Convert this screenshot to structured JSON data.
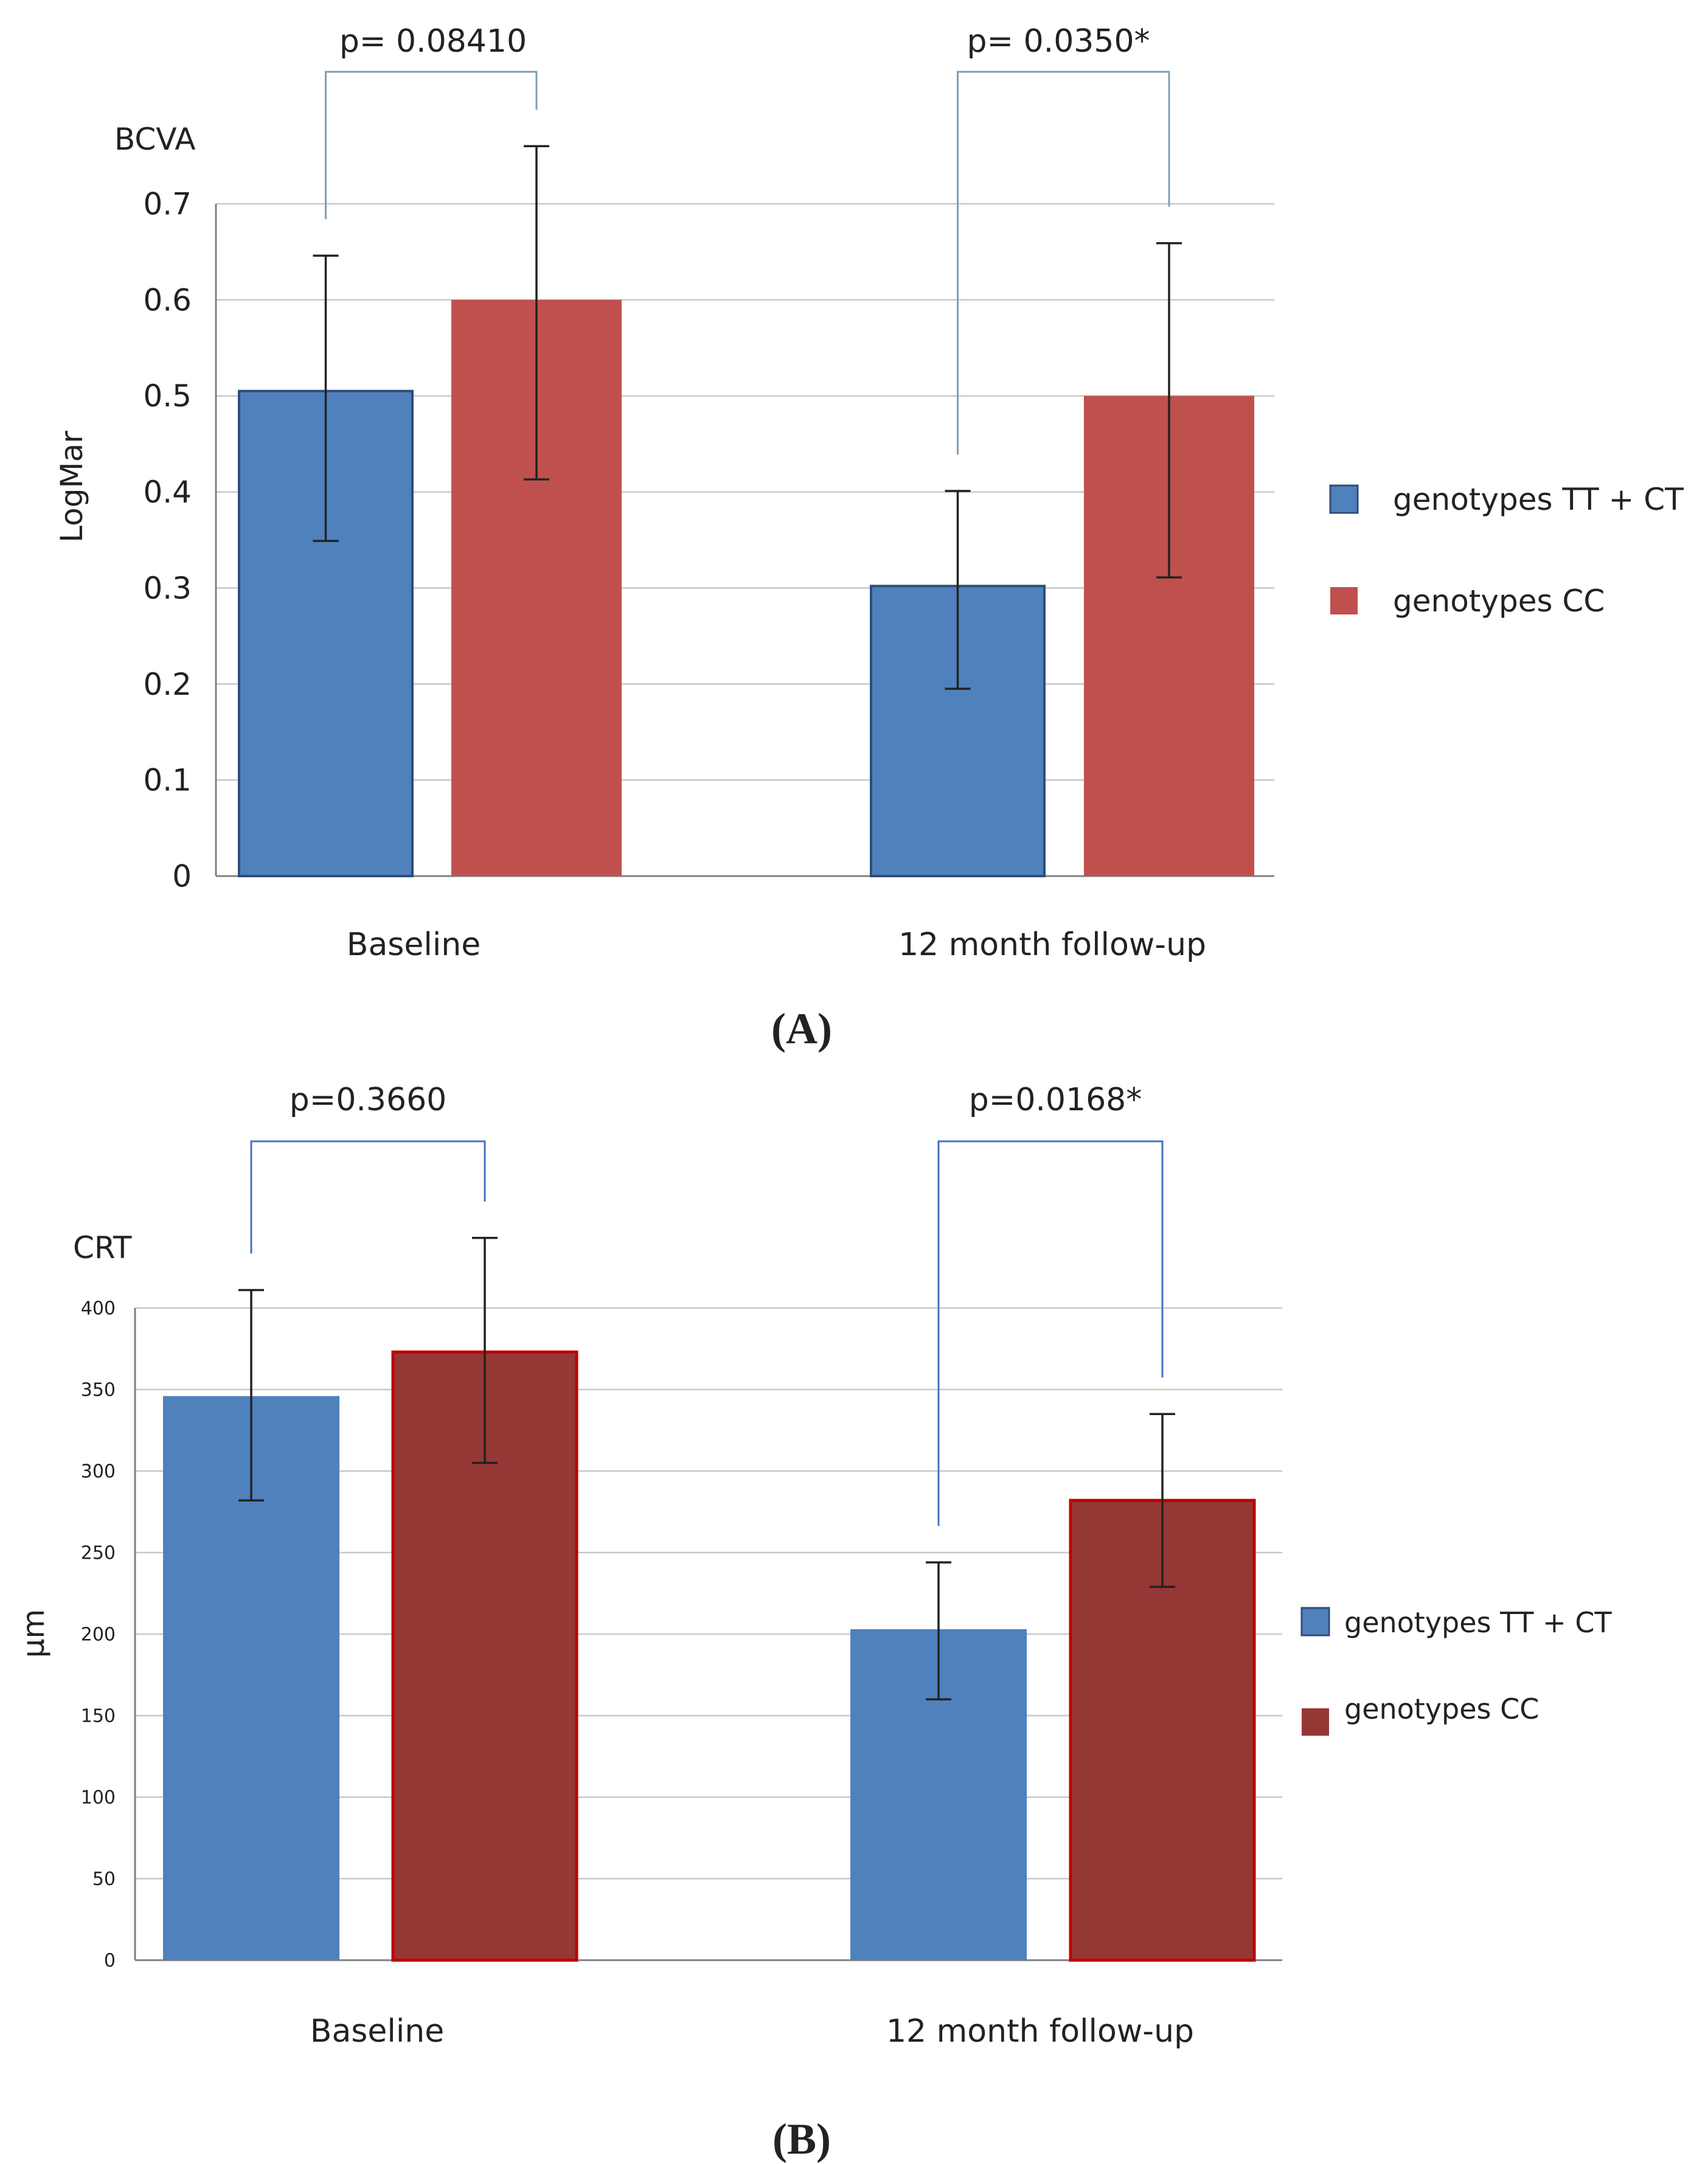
{
  "chart_data": [
    {
      "panel_label": "A",
      "type": "bar",
      "title": "BCVA",
      "ylabel": "LogMar",
      "xlabel": "",
      "ylim": [
        0,
        0.7
      ],
      "yticks": [
        "0",
        "0.1",
        "0.2",
        "0.3",
        "0.4",
        "0.5",
        "0.6",
        "0.7"
      ],
      "categories": [
        "Baseline",
        "12 month follow-up"
      ],
      "series": [
        {
          "name": "genotypes TT + CT",
          "color": "#4f81bd",
          "values": [
            0.505,
            0.302
          ],
          "error_low": [
            0.349,
            0.195
          ],
          "error_high": [
            0.646,
            0.401
          ]
        },
        {
          "name": "genotypes CC",
          "color": "#c0504d",
          "values": [
            0.6,
            0.5
          ],
          "error_low": [
            0.413,
            0.311
          ],
          "error_high": [
            0.76,
            0.659
          ]
        }
      ],
      "annotations": [
        "p= 0.08410",
        "p= 0.0350*"
      ],
      "grid": true,
      "legend": "right"
    },
    {
      "panel_label": "B",
      "type": "bar",
      "title": "CRT",
      "ylabel": "μm",
      "xlabel": "",
      "ylim": [
        0,
        400
      ],
      "yticks": [
        "0",
        "50",
        "100",
        "150",
        "200",
        "250",
        "300",
        "350",
        "400"
      ],
      "categories": [
        "Baseline",
        "12 month follow-up"
      ],
      "series": [
        {
          "name": "genotypes TT + CT",
          "color": "#4f81bd",
          "values": [
            346,
            203
          ],
          "error_low": [
            282,
            160
          ],
          "error_high": [
            411,
            244
          ]
        },
        {
          "name": "genotypes CC",
          "color": "#953735",
          "values": [
            373,
            282
          ],
          "error_low": [
            305,
            229
          ],
          "error_high": [
            443,
            335
          ]
        }
      ],
      "annotations": [
        "p=0.3660",
        "p=0.0168*"
      ],
      "grid": true,
      "legend": "right"
    }
  ]
}
